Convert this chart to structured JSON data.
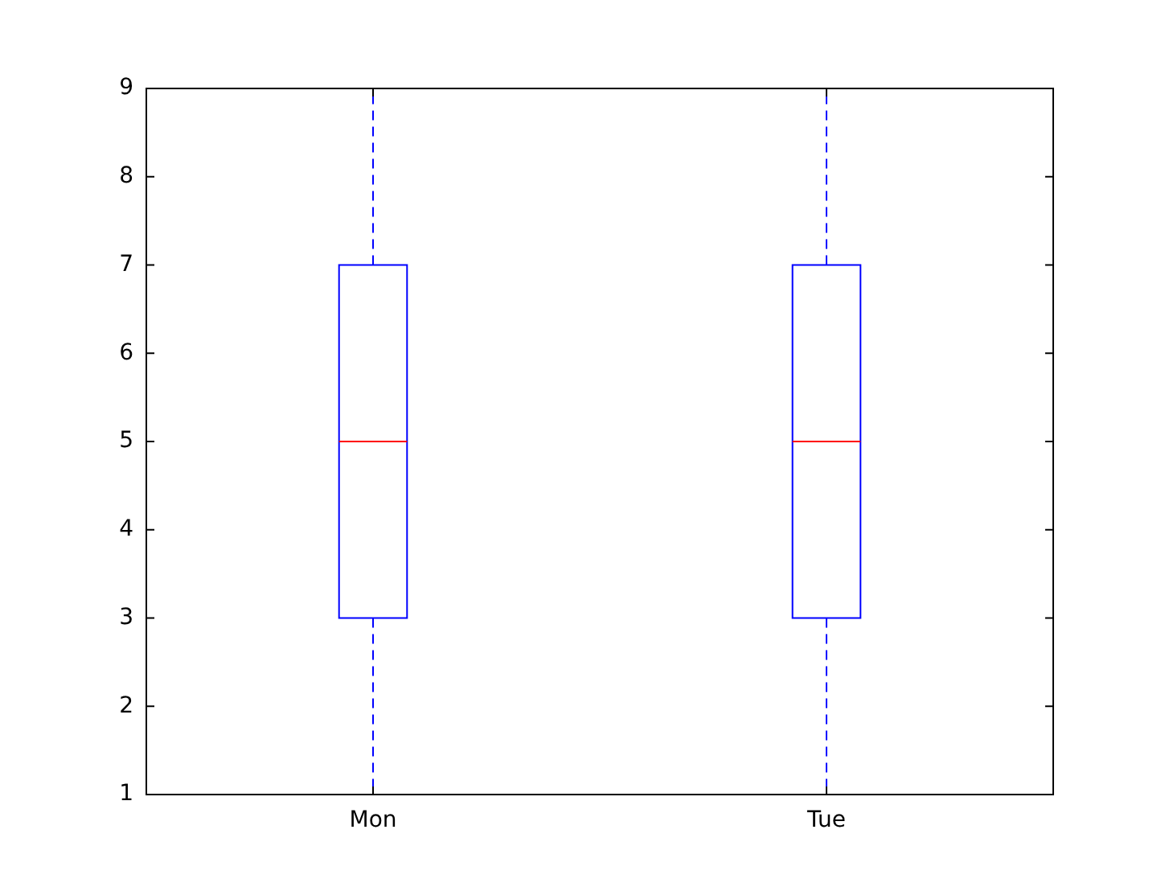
{
  "chart_data": {
    "type": "box",
    "categories": [
      "Mon",
      "Tue"
    ],
    "boxes": [
      {
        "low": 1,
        "q1": 3,
        "median": 5,
        "q3": 7,
        "high": 9
      },
      {
        "low": 1,
        "q1": 3,
        "median": 5,
        "q3": 7,
        "high": 9
      }
    ],
    "color": "#0000ff",
    "line_style": "dashed",
    "ylim": [
      1,
      9
    ],
    "yticks": [
      1,
      2,
      3,
      4,
      5,
      6,
      7,
      8,
      9
    ],
    "grid": false,
    "legend": false
  }
}
